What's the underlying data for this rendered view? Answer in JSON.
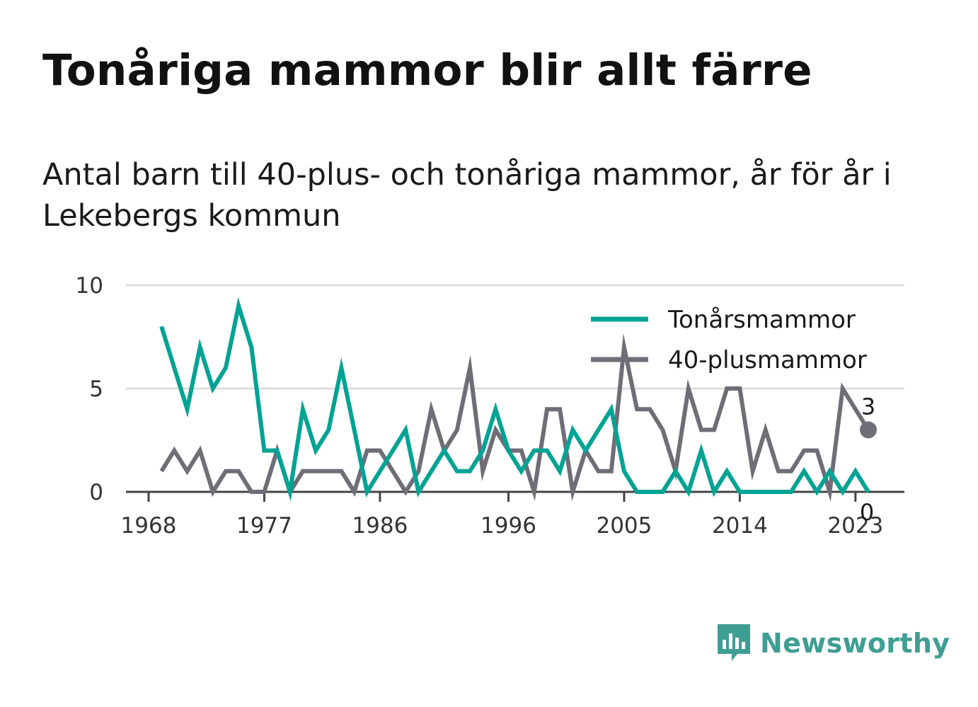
{
  "title": "Tonåriga mammor blir allt färre",
  "subtitle": "Antal barn till 40-plus- och tonåriga mammor, år för år i Lekebergs kommun",
  "brand": {
    "name": "Newsworthy",
    "icon": "newsworthy-logo-icon",
    "color": "#3e9e93"
  },
  "chart_data": {
    "type": "line",
    "x": [
      1969,
      1970,
      1971,
      1972,
      1973,
      1974,
      1975,
      1976,
      1977,
      1978,
      1979,
      1980,
      1981,
      1982,
      1983,
      1984,
      1985,
      1986,
      1987,
      1988,
      1989,
      1990,
      1991,
      1992,
      1993,
      1994,
      1995,
      1996,
      1997,
      1998,
      1999,
      2000,
      2001,
      2002,
      2003,
      2004,
      2005,
      2006,
      2007,
      2008,
      2009,
      2010,
      2011,
      2012,
      2013,
      2014,
      2015,
      2016,
      2017,
      2018,
      2019,
      2020,
      2021,
      2022,
      2023,
      2024
    ],
    "series": [
      {
        "name": "Tonårsmammor",
        "color": "#00a394",
        "values": [
          8,
          6,
          4,
          7,
          5,
          6,
          9,
          7,
          2,
          2,
          0,
          4,
          2,
          3,
          6,
          3,
          0,
          1,
          2,
          3,
          0,
          1,
          2,
          1,
          1,
          2,
          4,
          2,
          1,
          2,
          2,
          1,
          3,
          2,
          3,
          4,
          1,
          0,
          0,
          0,
          1,
          0,
          2,
          0,
          1,
          0,
          0,
          0,
          0,
          0,
          1,
          0,
          1,
          0,
          1,
          0
        ]
      },
      {
        "name": "40-plusmammor",
        "color": "#6f6e77",
        "values": [
          1,
          2,
          1,
          2,
          0,
          1,
          1,
          0,
          0,
          2,
          0,
          1,
          1,
          1,
          1,
          0,
          2,
          2,
          1,
          0,
          1,
          4,
          2,
          3,
          6,
          1,
          3,
          2,
          2,
          0,
          4,
          4,
          0,
          2,
          1,
          1,
          7,
          4,
          4,
          3,
          1,
          5,
          3,
          3,
          5,
          5,
          1,
          3,
          1,
          1,
          2,
          2,
          0,
          5,
          4,
          3
        ]
      }
    ],
    "x_ticks": [
      "1968",
      "1977",
      "1986",
      "1996",
      "2005",
      "2014",
      "2023"
    ],
    "y_ticks": [
      "0",
      "5",
      "10"
    ],
    "ylim": [
      0,
      10
    ],
    "xlim": [
      1968,
      2025
    ],
    "legend": {
      "position": "top-right"
    },
    "end_labels": {
      "Tonårsmammor": "0",
      "40-plusmammor": "3"
    },
    "grid": true,
    "colors": {
      "gridline": "#dedede",
      "axis": "#444444"
    }
  }
}
